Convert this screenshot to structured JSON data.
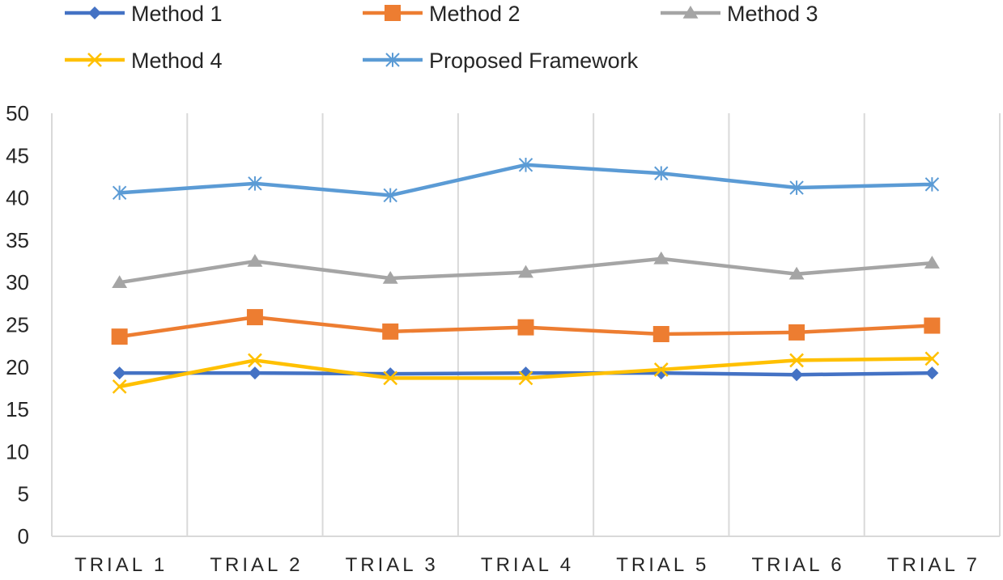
{
  "chart_data": {
    "type": "line",
    "title": "",
    "xlabel": "",
    "ylabel": "",
    "ylim": [
      0,
      50
    ],
    "yticks": [
      0,
      5,
      10,
      15,
      20,
      25,
      30,
      35,
      40,
      45,
      50
    ],
    "grid": "vertical",
    "legend_position": "top",
    "categories": [
      "TRIAL 1",
      "TRIAL 2",
      "TRIAL 3",
      "TRIAL 4",
      "TRIAL 5",
      "TRIAL 6",
      "TRIAL 7"
    ],
    "series": [
      {
        "name": "Method 1",
        "color": "#4472C4",
        "marker": "diamond",
        "values": [
          19.3,
          19.3,
          19.2,
          19.3,
          19.3,
          19.1,
          19.3
        ]
      },
      {
        "name": "Method 2",
        "color": "#ED7D31",
        "marker": "square",
        "values": [
          23.6,
          25.9,
          24.2,
          24.7,
          23.9,
          24.1,
          24.9
        ]
      },
      {
        "name": "Method 3",
        "color": "#A5A5A5",
        "marker": "triangle",
        "values": [
          30.0,
          32.5,
          30.5,
          31.2,
          32.8,
          31.0,
          32.3
        ]
      },
      {
        "name": "Method 4",
        "color": "#FFC000",
        "marker": "x",
        "values": [
          17.7,
          20.8,
          18.7,
          18.7,
          19.7,
          20.8,
          21.0
        ]
      },
      {
        "name": "Proposed Framework",
        "color": "#5B9BD5",
        "marker": "asterisk",
        "values": [
          40.6,
          41.7,
          40.3,
          43.9,
          42.9,
          41.2,
          41.6
        ]
      }
    ]
  }
}
